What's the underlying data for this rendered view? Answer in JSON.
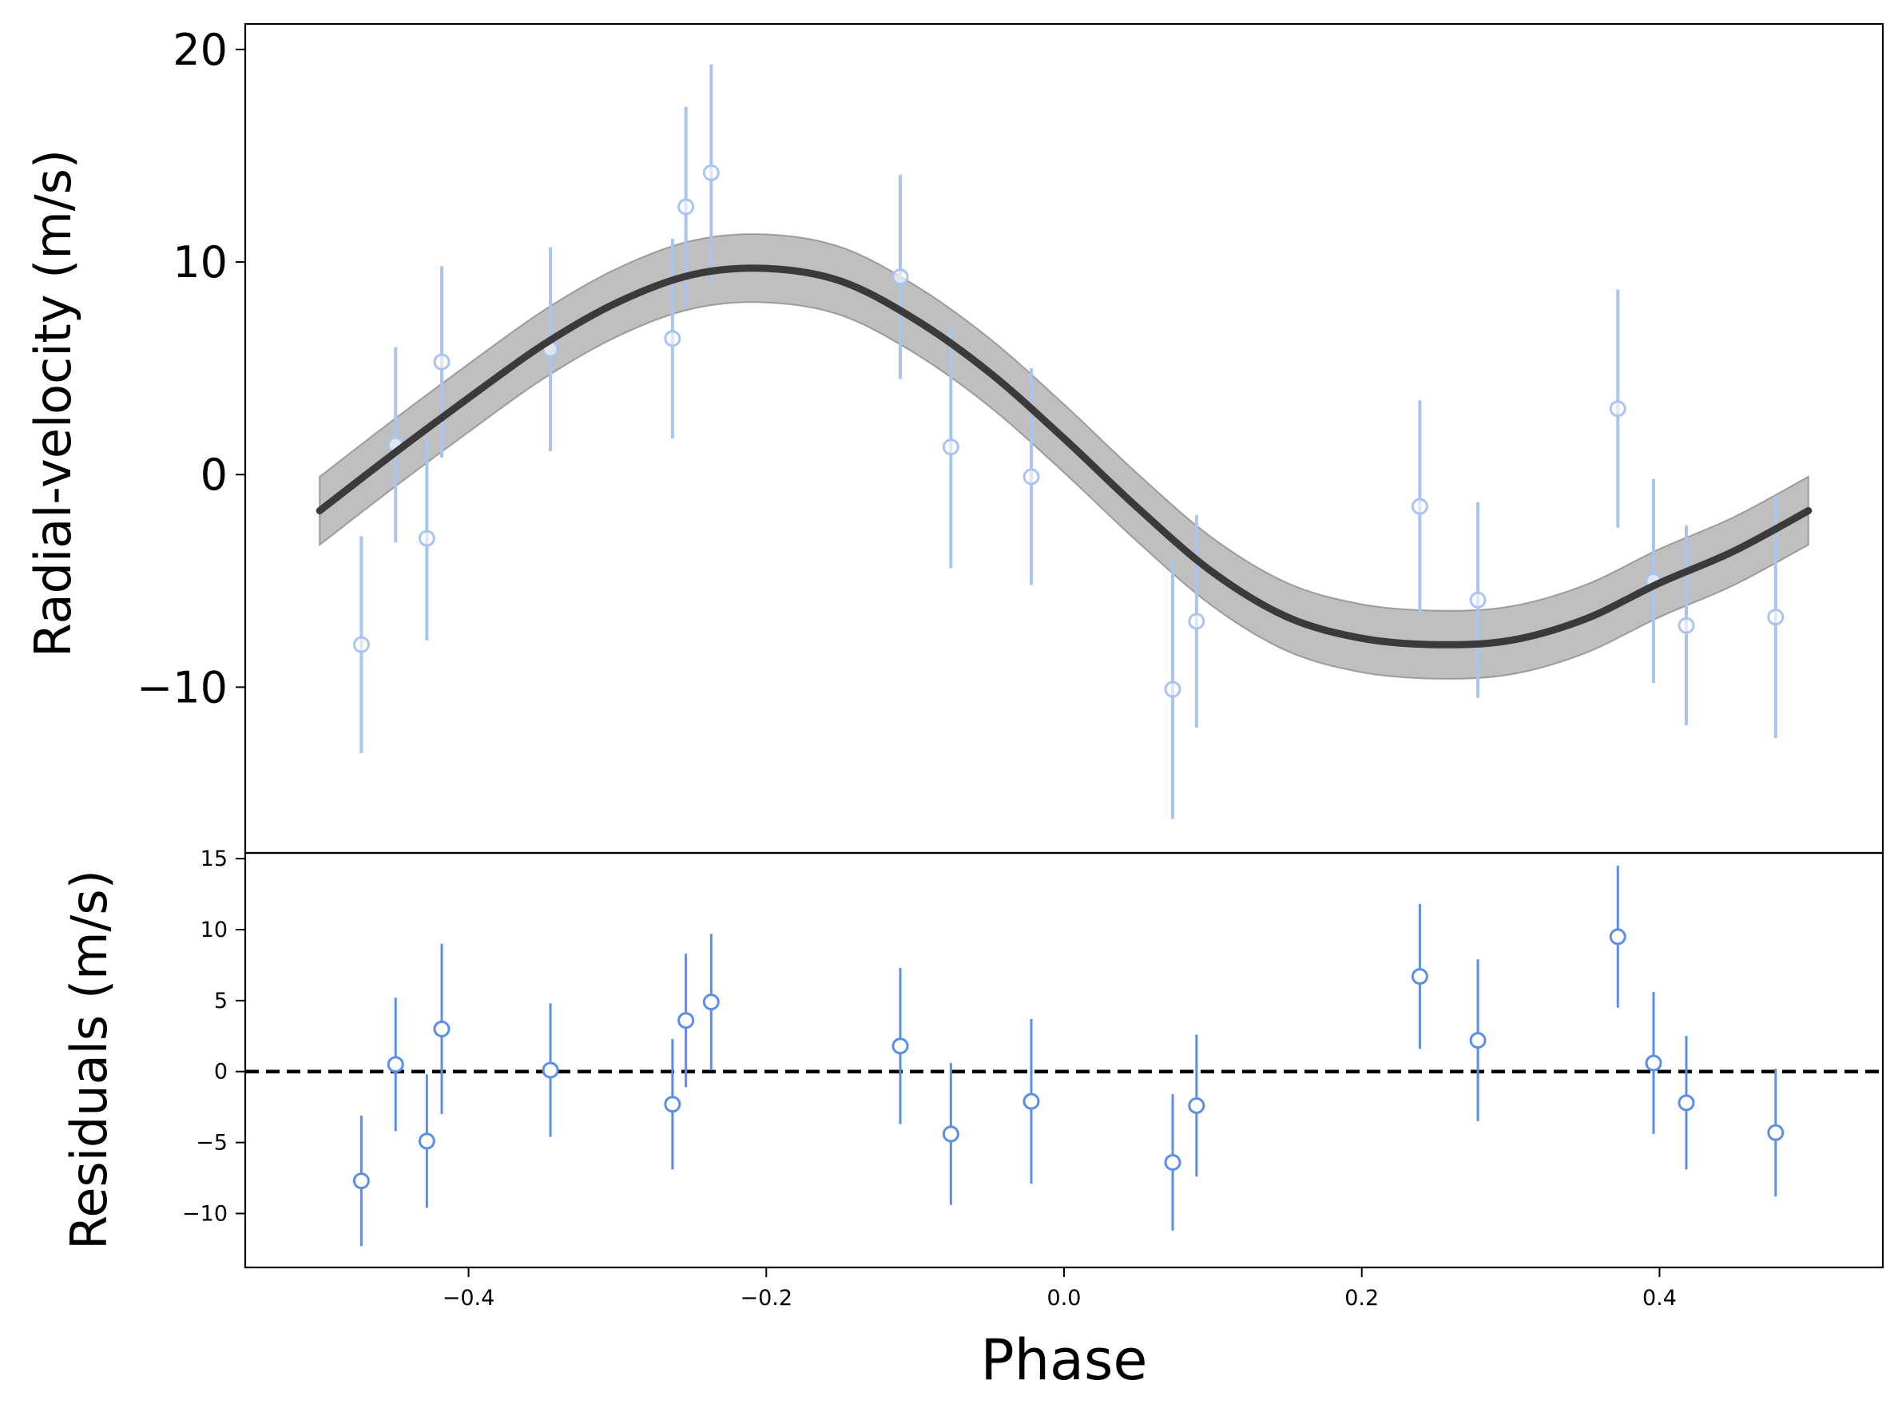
{
  "colors": {
    "data": "#5b8ee6",
    "data_faded": "#aac4f2",
    "model": "#3a3a3a",
    "band": "#a9a9a9",
    "zero_line": "#000000"
  },
  "chart_data": [
    {
      "type": "scatter",
      "panel": "top",
      "ylabel": "Radial-velocity (m/s)",
      "xlim": [
        -0.55,
        0.55
      ],
      "ylim": [
        -17.8,
        21.2
      ],
      "yticks": [
        -10,
        0,
        10,
        20
      ],
      "ytick_labels": [
        "−10",
        "0",
        "10",
        "20"
      ],
      "series": [
        {
          "kind": "errorbar",
          "x": [
            -0.472,
            -0.449,
            -0.428,
            -0.418,
            -0.345,
            -0.263,
            -0.254,
            -0.237,
            -0.11,
            -0.076,
            -0.022,
            0.073,
            0.089,
            0.239,
            0.278,
            0.372,
            0.396,
            0.418,
            0.478
          ],
          "y": [
            -8.0,
            1.4,
            -3.0,
            5.3,
            5.9,
            6.4,
            12.6,
            14.2,
            9.3,
            1.3,
            -0.1,
            -10.1,
            -6.9,
            -1.5,
            -5.9,
            3.1,
            -5.0,
            -7.1,
            -6.7
          ],
          "yerr": [
            5.1,
            4.6,
            4.8,
            4.5,
            4.8,
            4.7,
            4.7,
            5.1,
            4.8,
            5.7,
            5.1,
            6.1,
            5.0,
            5.0,
            4.6,
            5.6,
            4.8,
            4.7,
            5.7
          ]
        },
        {
          "kind": "model",
          "x": [
            -0.5,
            -0.45,
            -0.4,
            -0.35,
            -0.3,
            -0.25,
            -0.2,
            -0.15,
            -0.1,
            -0.05,
            0.0,
            0.05,
            0.1,
            0.15,
            0.2,
            0.25,
            0.3,
            0.35,
            0.4,
            0.45,
            0.5
          ],
          "y": [
            -1.7,
            1.0,
            3.6,
            6.1,
            8.1,
            9.4,
            9.7,
            9.1,
            7.3,
            4.8,
            1.7,
            -1.6,
            -4.6,
            -6.7,
            -7.7,
            -8.0,
            -7.8,
            -6.8,
            -5.1,
            -3.6,
            -1.7
          ],
          "band_halfwidth": 1.6
        }
      ]
    },
    {
      "type": "scatter",
      "panel": "bottom",
      "xlabel": "Phase",
      "ylabel": "Residuals (m/s)",
      "xlim": [
        -0.55,
        0.55
      ],
      "ylim": [
        -13.8,
        15.4
      ],
      "xticks": [
        -0.4,
        -0.2,
        0.0,
        0.2,
        0.4
      ],
      "xtick_labels": [
        "−0.4",
        "−0.2",
        "0.0",
        "0.2",
        "0.4"
      ],
      "yticks": [
        -10,
        -5,
        0,
        5,
        10,
        15
      ],
      "ytick_labels": [
        "−10",
        "−5",
        "0",
        "5",
        "10",
        "15"
      ],
      "zero_line": 0,
      "series": [
        {
          "kind": "errorbar",
          "x": [
            -0.472,
            -0.449,
            -0.428,
            -0.418,
            -0.345,
            -0.263,
            -0.254,
            -0.237,
            -0.11,
            -0.076,
            -0.022,
            0.073,
            0.089,
            0.239,
            0.278,
            0.372,
            0.396,
            0.418,
            0.478
          ],
          "y": [
            -7.7,
            0.5,
            -4.9,
            3.0,
            0.1,
            -2.3,
            3.6,
            4.9,
            1.8,
            -4.4,
            -2.1,
            -6.4,
            -2.4,
            6.7,
            2.2,
            9.5,
            0.6,
            -2.2,
            -4.3
          ],
          "yerr": [
            4.6,
            4.7,
            4.7,
            6.0,
            4.7,
            4.6,
            4.7,
            4.8,
            5.5,
            5.0,
            5.8,
            4.8,
            5.0,
            5.1,
            5.7,
            5.0,
            5.0,
            4.7,
            4.5
          ]
        }
      ]
    }
  ]
}
